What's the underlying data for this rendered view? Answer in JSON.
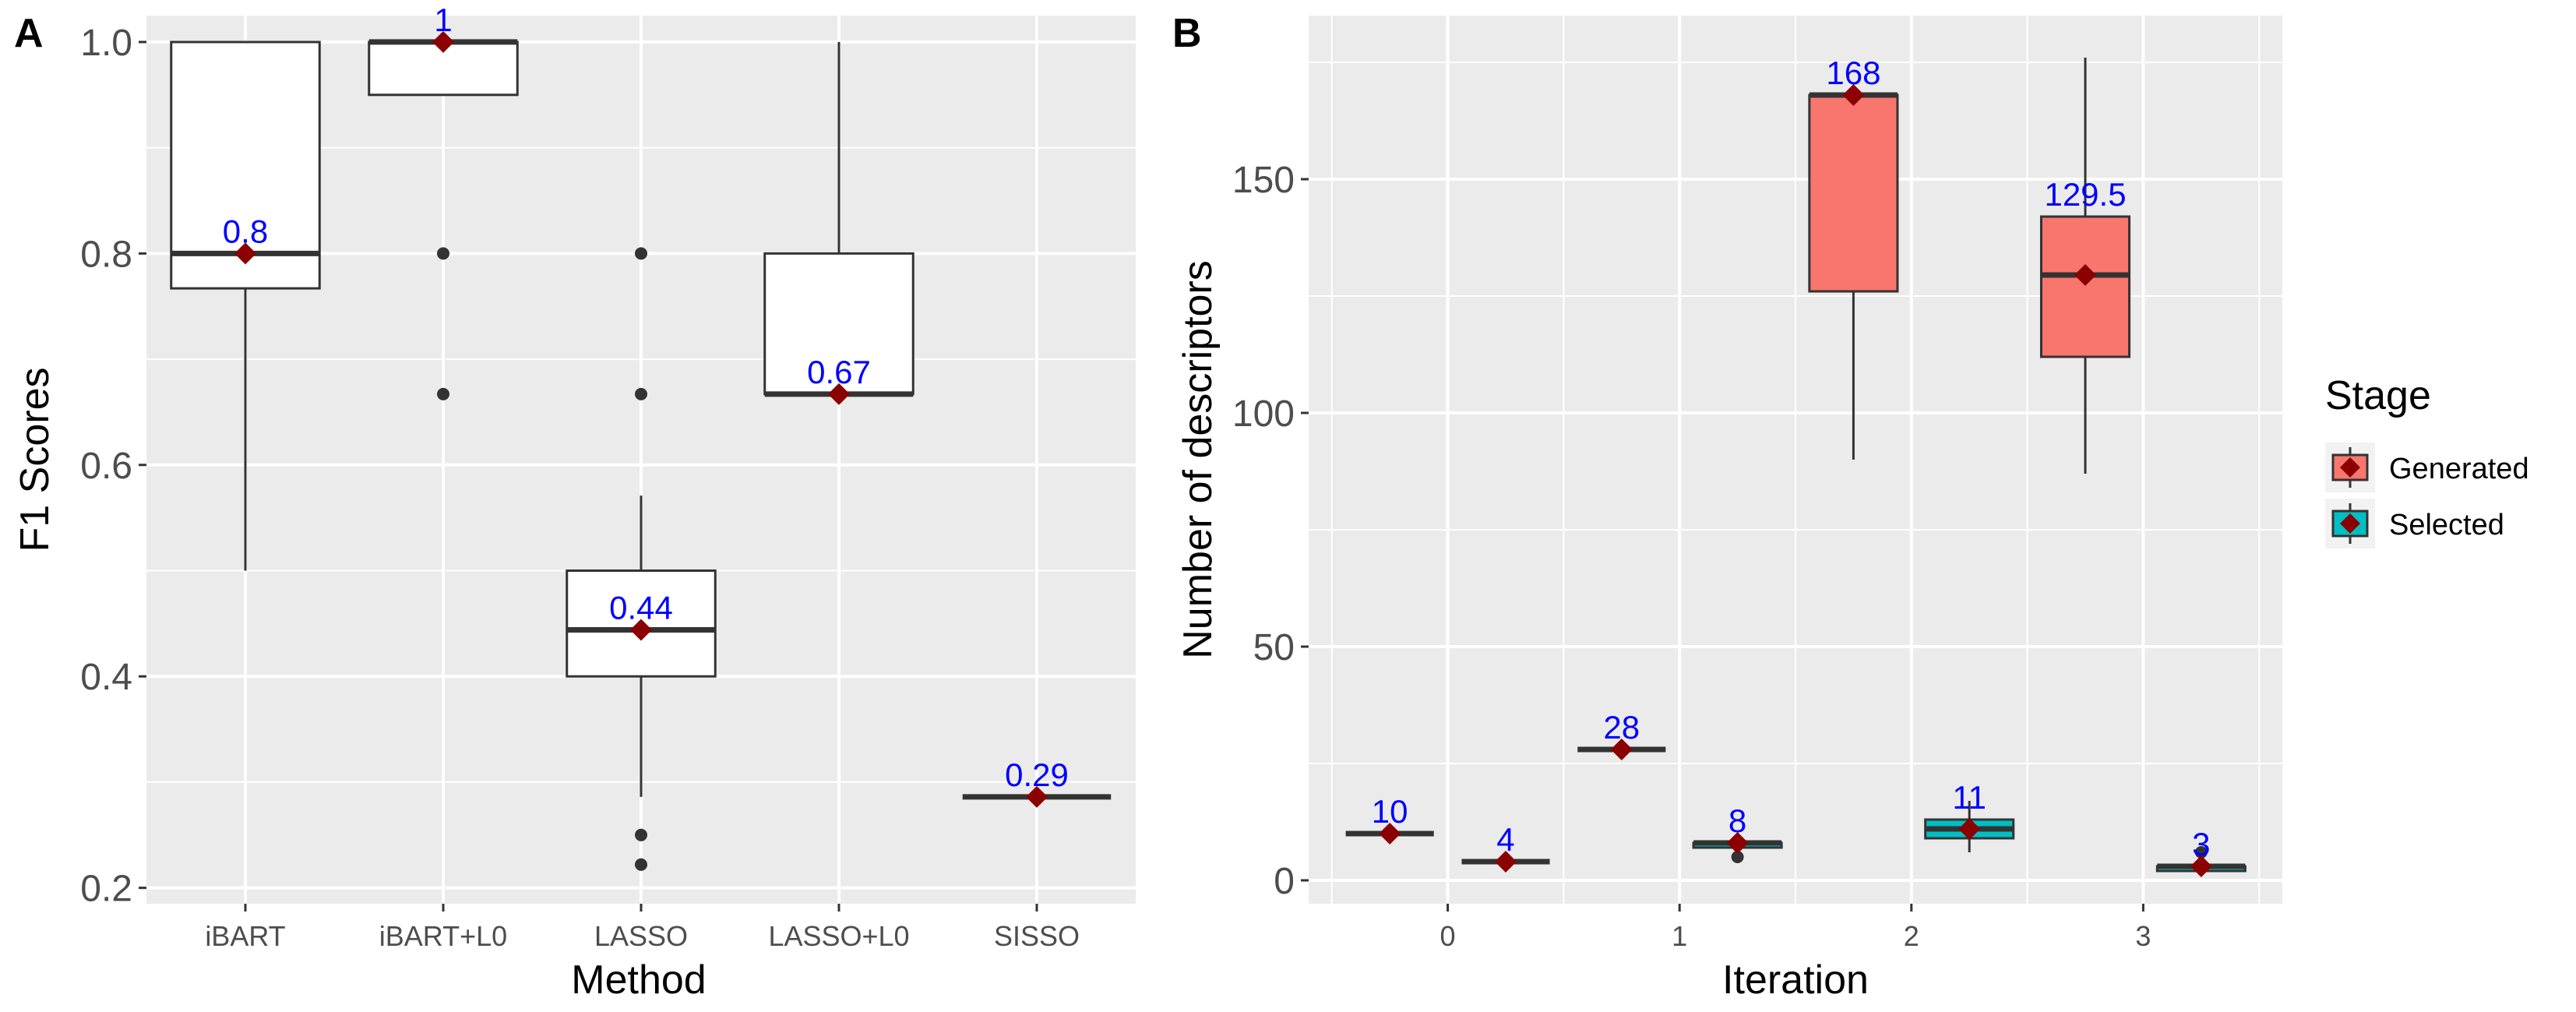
{
  "chart_data": [
    {
      "panel": "A",
      "type": "box",
      "xlabel": "Method",
      "ylabel": "F1 Scores",
      "ylim": [
        0.185,
        1.025
      ],
      "yticks": [
        0.2,
        0.4,
        0.6,
        0.8,
        1.0
      ],
      "ytick_labels": [
        "0.2",
        "0.4",
        "0.6",
        "0.8",
        "1.0"
      ],
      "categories": [
        "iBART",
        "iBART+L0",
        "LASSO",
        "LASSO+L0",
        "SISSO"
      ],
      "boxes": [
        {
          "q1": 0.767,
          "median": 0.8,
          "q3": 1.0,
          "whisker_low": 0.5,
          "whisker_high": 1.0,
          "outliers": [],
          "mean": 0.8,
          "label": "0.8"
        },
        {
          "q1": 0.95,
          "median": 1.0,
          "q3": 1.0,
          "whisker_low": 0.95,
          "whisker_high": 1.0,
          "outliers": [
            0.8,
            0.667
          ],
          "mean": 1.0,
          "label": "1"
        },
        {
          "q1": 0.4,
          "median": 0.444,
          "q3": 0.5,
          "whisker_low": 0.286,
          "whisker_high": 0.571,
          "outliers": [
            0.8,
            0.667,
            0.25,
            0.222
          ],
          "mean": 0.444,
          "label": "0.44"
        },
        {
          "q1": 0.667,
          "median": 0.667,
          "q3": 0.8,
          "whisker_low": 0.667,
          "whisker_high": 1.0,
          "outliers": [],
          "mean": 0.667,
          "label": "0.67"
        },
        {
          "q1": 0.286,
          "median": 0.286,
          "q3": 0.286,
          "whisker_low": 0.286,
          "whisker_high": 0.286,
          "outliers": [],
          "mean": 0.286,
          "label": "0.29"
        }
      ]
    },
    {
      "panel": "B",
      "type": "box",
      "xlabel": "Iteration",
      "ylabel": "Number of descriptors",
      "ylim": [
        -5,
        185
      ],
      "yticks": [
        0,
        50,
        100,
        150
      ],
      "ytick_labels": [
        "0",
        "50",
        "100",
        "150"
      ],
      "xlim": [
        -0.6,
        3.6
      ],
      "xticks": [
        0,
        1,
        2,
        3
      ],
      "xtick_labels": [
        "0",
        "1",
        "2",
        "3"
      ],
      "legend_title": "Stage",
      "legend_position": "right",
      "series": [
        {
          "name": "Generated",
          "color": "#F8766D"
        },
        {
          "name": "Selected",
          "color": "#00BFC4"
        }
      ],
      "boxes": [
        {
          "iteration": 0,
          "stage": "Generated",
          "q1": 10,
          "median": 10,
          "q3": 10,
          "whisker_low": 10,
          "whisker_high": 10,
          "outliers": [],
          "mean": 10,
          "label": "10"
        },
        {
          "iteration": 0,
          "stage": "Selected",
          "q1": 4,
          "median": 4,
          "q3": 4,
          "whisker_low": 4,
          "whisker_high": 4,
          "outliers": [],
          "mean": 4,
          "label": "4"
        },
        {
          "iteration": 1,
          "stage": "Generated",
          "q1": 28,
          "median": 28,
          "q3": 28,
          "whisker_low": 28,
          "whisker_high": 28,
          "outliers": [],
          "mean": 28,
          "label": "28"
        },
        {
          "iteration": 1,
          "stage": "Selected",
          "q1": 7,
          "median": 8,
          "q3": 8,
          "whisker_low": 7,
          "whisker_high": 8,
          "outliers": [
            5
          ],
          "mean": 8,
          "label": "8"
        },
        {
          "iteration": 2,
          "stage": "Generated",
          "q1": 126,
          "median": 168,
          "q3": 168,
          "whisker_low": 90,
          "whisker_high": 168,
          "outliers": [],
          "mean": 168,
          "label": "168"
        },
        {
          "iteration": 2,
          "stage": "Selected",
          "q1": 9,
          "median": 11,
          "q3": 13,
          "whisker_low": 6,
          "whisker_high": 17,
          "outliers": [],
          "mean": 11,
          "label": "11"
        },
        {
          "iteration": 3,
          "stage": "Generated",
          "q1": 112,
          "median": 129.5,
          "q3": 142,
          "whisker_low": 87,
          "whisker_high": 176,
          "outliers": [],
          "mean": 129.5,
          "label": "129.5"
        },
        {
          "iteration": 3,
          "stage": "Selected",
          "q1": 2,
          "median": 3,
          "q3": 3,
          "whisker_low": 2,
          "whisker_high": 3,
          "outliers": [
            6
          ],
          "mean": 3,
          "label": "3"
        }
      ]
    }
  ],
  "colors": {
    "panel_bg": "#EBEBEB",
    "grid": "#FFFFFF",
    "box_edge": "#333333",
    "mean_marker": "#8B0000",
    "value_label": "#0000FF",
    "tick_text": "#4D4D4D"
  }
}
